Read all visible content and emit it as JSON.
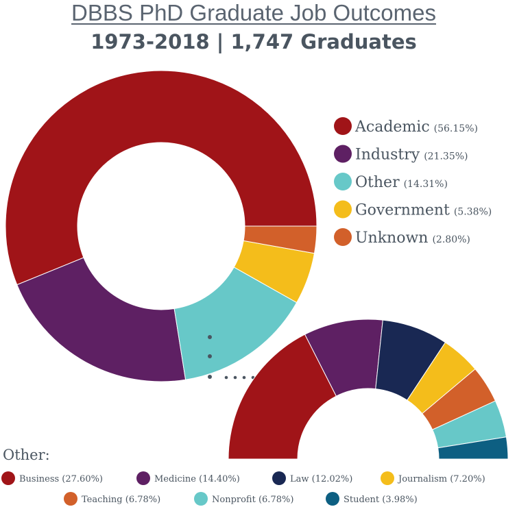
{
  "header": {
    "title": "DBBS PhD Graduate Job Outcomes",
    "subtitle": "1973-2018 | 1,747 Graduates"
  },
  "chart_data": [
    {
      "type": "pie",
      "variant": "donut",
      "series": [
        {
          "label": "Academic",
          "pct_label": "(56.15%)",
          "value": 56.15,
          "color": "#a01418"
        },
        {
          "label": "Industry",
          "pct_label": "(21.35%)",
          "value": 21.35,
          "color": "#5e2063"
        },
        {
          "label": "Other",
          "pct_label": "(14.31%)",
          "value": 14.31,
          "color": "#67c8c8"
        },
        {
          "label": "Government",
          "pct_label": "(5.38%)",
          "value": 5.38,
          "color": "#f4bd1b"
        },
        {
          "label": "Unknown",
          "pct_label": "(2.80%)",
          "value": 2.8,
          "color": "#d2602a"
        }
      ],
      "legend_position": "right"
    },
    {
      "type": "pie",
      "variant": "half-donut",
      "title": "Other:",
      "series": [
        {
          "label": "Business (27.60%)",
          "value": 27.6,
          "color": "#a01418"
        },
        {
          "label": "Medicine (14.40%)",
          "value": 14.4,
          "color": "#5e2063"
        },
        {
          "label": "Law (12.02%)",
          "value": 12.02,
          "color": "#192853"
        },
        {
          "label": "Journalism (7.20%)",
          "value": 7.2,
          "color": "#f4bd1b"
        },
        {
          "label": "Teaching (6.78%)",
          "value": 6.78,
          "color": "#d2602a"
        },
        {
          "label": "Nonprofit (6.78%)",
          "value": 6.78,
          "color": "#67c8c8"
        },
        {
          "label": "Student (3.98%)",
          "value": 3.98,
          "color": "#0d5f82"
        }
      ],
      "legend_position": "bottom"
    }
  ]
}
